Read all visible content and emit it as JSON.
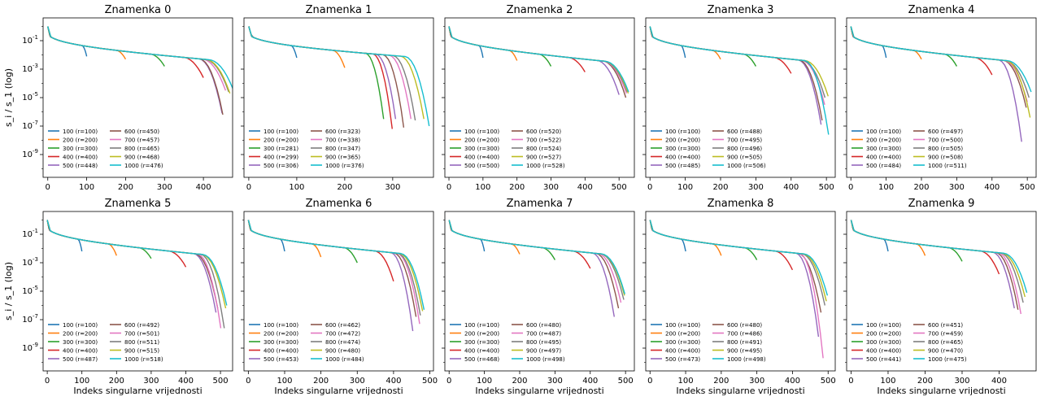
{
  "figure": {
    "x_label": "Indeks singularne vrijednosti",
    "y_label": "s_i / s_1 (log)",
    "y_ticks": [
      "10^-1",
      "10^-3",
      "10^-5",
      "10^-7",
      "10^-9"
    ]
  },
  "colors": [
    "#1f77b4",
    "#ff7f0e",
    "#2ca02c",
    "#d62728",
    "#9467bd",
    "#8c564b",
    "#e377c2",
    "#7f7f7f",
    "#bcbd22",
    "#17becf"
  ],
  "chart_data": [
    {
      "type": "line",
      "title": "Znamenka 0",
      "x_ticks": [
        0,
        100,
        200,
        300,
        400
      ],
      "xlim": [
        -12,
        475
      ],
      "ylim": [
        -10.6,
        0.6
      ],
      "yscale": "log",
      "legend": "lower-left",
      "sizes": [
        100,
        200,
        300,
        400,
        500,
        600,
        700,
        800,
        900,
        1000
      ],
      "series": [
        {
          "name": "100 (r=100)",
          "rank": 100,
          "end": -2.1
        },
        {
          "name": "200 (r=200)",
          "rank": 200,
          "end": -2.3
        },
        {
          "name": "300 (r=300)",
          "rank": 300,
          "end": -2.8
        },
        {
          "name": "400 (r=400)",
          "rank": 400,
          "end": -3.6
        },
        {
          "name": "500 (r=448)",
          "rank": 448,
          "end": -6.1
        },
        {
          "name": "600 (r=450)",
          "rank": 450,
          "end": -6.2
        },
        {
          "name": "700 (r=457)",
          "rank": 457,
          "end": -4.5
        },
        {
          "name": "800 (r=465)",
          "rank": 465,
          "end": -4.6
        },
        {
          "name": "900 (r=468)",
          "rank": 468,
          "end": -4.7
        },
        {
          "name": "1000 (r=476)",
          "rank": 476,
          "end": -4.4
        }
      ]
    },
    {
      "type": "line",
      "title": "Znamenka 1",
      "x_ticks": [
        0,
        100,
        200,
        300
      ],
      "xlim": [
        -10,
        385
      ],
      "ylim": [
        -10.6,
        0.6
      ],
      "yscale": "log",
      "legend": "lower-left",
      "sizes": [
        100,
        200,
        300,
        400,
        500,
        600,
        700,
        800,
        900,
        1000
      ],
      "series": [
        {
          "name": "100 (r=100)",
          "rank": 100,
          "end": -2.2
        },
        {
          "name": "200 (r=200)",
          "rank": 200,
          "end": -2.9
        },
        {
          "name": "300 (r=281)",
          "rank": 281,
          "end": -6.5
        },
        {
          "name": "400 (r=299)",
          "rank": 299,
          "end": -7.2
        },
        {
          "name": "500 (r=306)",
          "rank": 306,
          "end": -6.5
        },
        {
          "name": "600 (r=323)",
          "rank": 323,
          "end": -7.1
        },
        {
          "name": "700 (r=338)",
          "rank": 338,
          "end": -6.5
        },
        {
          "name": "800 (r=347)",
          "rank": 347,
          "end": -6.6
        },
        {
          "name": "900 (r=365)",
          "rank": 365,
          "end": -6.5
        },
        {
          "name": "1000 (r=376)",
          "rank": 376,
          "end": -7.0
        }
      ]
    },
    {
      "type": "line",
      "title": "Znamenka 2",
      "x_ticks": [
        0,
        100,
        200,
        300,
        400,
        500
      ],
      "xlim": [
        -12,
        545
      ],
      "ylim": [
        -10.6,
        0.6
      ],
      "yscale": "log",
      "legend": "lower-left",
      "sizes": [
        100,
        200,
        300,
        400,
        500,
        600,
        700,
        800,
        900,
        1000
      ],
      "series": [
        {
          "name": "100 (r=100)",
          "rank": 100,
          "end": -2.2
        },
        {
          "name": "200 (r=200)",
          "rank": 200,
          "end": -2.4
        },
        {
          "name": "300 (r=300)",
          "rank": 300,
          "end": -2.8
        },
        {
          "name": "400 (r=400)",
          "rank": 400,
          "end": -3.2
        },
        {
          "name": "500 (r=500)",
          "rank": 500,
          "end": -4.8
        },
        {
          "name": "600 (r=520)",
          "rank": 520,
          "end": -5.0
        },
        {
          "name": "700 (r=522)",
          "rank": 522,
          "end": -4.7
        },
        {
          "name": "800 (r=524)",
          "rank": 524,
          "end": -4.6
        },
        {
          "name": "900 (r=527)",
          "rank": 527,
          "end": -4.7
        },
        {
          "name": "1000 (r=528)",
          "rank": 528,
          "end": -4.6
        }
      ]
    },
    {
      "type": "line",
      "title": "Znamenka 3",
      "x_ticks": [
        0,
        100,
        200,
        300,
        400,
        500
      ],
      "xlim": [
        -12,
        525
      ],
      "ylim": [
        -10.6,
        0.6
      ],
      "yscale": "log",
      "legend": "lower-left",
      "sizes": [
        100,
        200,
        300,
        400,
        500,
        600,
        700,
        800,
        900,
        1000
      ],
      "series": [
        {
          "name": "100 (r=100)",
          "rank": 100,
          "end": -2.2
        },
        {
          "name": "200 (r=200)",
          "rank": 200,
          "end": -2.3
        },
        {
          "name": "300 (r=300)",
          "rank": 300,
          "end": -2.8
        },
        {
          "name": "400 (r=400)",
          "rank": 400,
          "end": -3.3
        },
        {
          "name": "500 (r=485)",
          "rank": 485,
          "end": -6.9
        },
        {
          "name": "600 (r=488)",
          "rank": 488,
          "end": -6.6
        },
        {
          "name": "700 (r=495)",
          "rank": 495,
          "end": -5.5
        },
        {
          "name": "800 (r=496)",
          "rank": 496,
          "end": -5.0
        },
        {
          "name": "900 (r=505)",
          "rank": 505,
          "end": -4.9
        },
        {
          "name": "1000 (r=506)",
          "rank": 506,
          "end": -7.6
        }
      ]
    },
    {
      "type": "line",
      "title": "Znamenka 4",
      "x_ticks": [
        0,
        100,
        200,
        300,
        400,
        500
      ],
      "xlim": [
        -12,
        525
      ],
      "ylim": [
        -10.6,
        0.6
      ],
      "yscale": "log",
      "legend": "lower-left",
      "sizes": [
        100,
        200,
        300,
        400,
        500,
        600,
        700,
        800,
        900,
        1000
      ],
      "series": [
        {
          "name": "100 (r=100)",
          "rank": 100,
          "end": -2.2
        },
        {
          "name": "200 (r=200)",
          "rank": 200,
          "end": -2.3
        },
        {
          "name": "300 (r=300)",
          "rank": 300,
          "end": -2.8
        },
        {
          "name": "400 (r=400)",
          "rank": 400,
          "end": -3.4
        },
        {
          "name": "500 (r=484)",
          "rank": 484,
          "end": -8.1
        },
        {
          "name": "600 (r=497)",
          "rank": 497,
          "end": -5.7
        },
        {
          "name": "700 (r=500)",
          "rank": 500,
          "end": -5.3
        },
        {
          "name": "800 (r=505)",
          "rank": 505,
          "end": -5.0
        },
        {
          "name": "900 (r=508)",
          "rank": 508,
          "end": -6.4
        },
        {
          "name": "1000 (r=511)",
          "rank": 511,
          "end": -4.6
        }
      ]
    },
    {
      "type": "line",
      "title": "Znamenka 5",
      "x_ticks": [
        0,
        100,
        200,
        300,
        400,
        500
      ],
      "xlim": [
        -12,
        535
      ],
      "ylim": [
        -10.6,
        0.6
      ],
      "yscale": "log",
      "legend": "lower-left",
      "sizes": [
        100,
        200,
        300,
        400,
        500,
        600,
        700,
        800,
        900,
        1000
      ],
      "series": [
        {
          "name": "100 (r=100)",
          "rank": 100,
          "end": -2.2
        },
        {
          "name": "200 (r=200)",
          "rank": 200,
          "end": -2.5
        },
        {
          "name": "300 (r=300)",
          "rank": 300,
          "end": -2.7
        },
        {
          "name": "400 (r=400)",
          "rank": 400,
          "end": -3.3
        },
        {
          "name": "500 (r=487)",
          "rank": 487,
          "end": -6.5
        },
        {
          "name": "600 (r=492)",
          "rank": 492,
          "end": -6.2
        },
        {
          "name": "700 (r=501)",
          "rank": 501,
          "end": -7.6
        },
        {
          "name": "800 (r=511)",
          "rank": 511,
          "end": -7.6
        },
        {
          "name": "900 (r=515)",
          "rank": 515,
          "end": -6.2
        },
        {
          "name": "1000 (r=518)",
          "rank": 518,
          "end": -6.0
        }
      ]
    },
    {
      "type": "line",
      "title": "Znamenka 6",
      "x_ticks": [
        0,
        100,
        200,
        300,
        400,
        500
      ],
      "xlim": [
        -12,
        510
      ],
      "ylim": [
        -10.6,
        0.6
      ],
      "yscale": "log",
      "legend": "lower-left",
      "sizes": [
        100,
        200,
        300,
        400,
        500,
        600,
        700,
        800,
        900,
        1000
      ],
      "series": [
        {
          "name": "100 (r=100)",
          "rank": 100,
          "end": -2.2
        },
        {
          "name": "200 (r=200)",
          "rank": 200,
          "end": -2.6
        },
        {
          "name": "300 (r=300)",
          "rank": 300,
          "end": -3.0
        },
        {
          "name": "400 (r=400)",
          "rank": 400,
          "end": -4.3
        },
        {
          "name": "500 (r=453)",
          "rank": 453,
          "end": -7.8
        },
        {
          "name": "600 (r=462)",
          "rank": 462,
          "end": -6.8
        },
        {
          "name": "700 (r=472)",
          "rank": 472,
          "end": -7.3
        },
        {
          "name": "800 (r=474)",
          "rank": 474,
          "end": -6.7
        },
        {
          "name": "900 (r=480)",
          "rank": 480,
          "end": -6.4
        },
        {
          "name": "1000 (r=484)",
          "rank": 484,
          "end": -6.3
        }
      ]
    },
    {
      "type": "line",
      "title": "Znamenka 7",
      "x_ticks": [
        0,
        100,
        200,
        300,
        400,
        500
      ],
      "xlim": [
        -12,
        525
      ],
      "ylim": [
        -10.6,
        0.6
      ],
      "yscale": "log",
      "legend": "lower-left",
      "sizes": [
        100,
        200,
        300,
        400,
        500,
        600,
        700,
        800,
        900,
        1000
      ],
      "series": [
        {
          "name": "100 (r=100)",
          "rank": 100,
          "end": -2.2
        },
        {
          "name": "200 (r=200)",
          "rank": 200,
          "end": -2.4
        },
        {
          "name": "300 (r=300)",
          "rank": 300,
          "end": -2.8
        },
        {
          "name": "400 (r=400)",
          "rank": 400,
          "end": -3.4
        },
        {
          "name": "500 (r=468)",
          "rank": 468,
          "end": -6.8
        },
        {
          "name": "600 (r=480)",
          "rank": 480,
          "end": -6.2
        },
        {
          "name": "700 (r=487)",
          "rank": 487,
          "end": -5.8
        },
        {
          "name": "800 (r=495)",
          "rank": 495,
          "end": -5.6
        },
        {
          "name": "900 (r=497)",
          "rank": 497,
          "end": -5.3
        },
        {
          "name": "1000 (r=498)",
          "rank": 498,
          "end": -5.2
        }
      ]
    },
    {
      "type": "line",
      "title": "Znamenka 8",
      "x_ticks": [
        0,
        100,
        200,
        300,
        400,
        500
      ],
      "xlim": [
        -12,
        520
      ],
      "ylim": [
        -10.6,
        0.6
      ],
      "yscale": "log",
      "legend": "lower-left",
      "sizes": [
        100,
        200,
        300,
        400,
        500,
        600,
        700,
        800,
        900,
        1000
      ],
      "series": [
        {
          "name": "100 (r=100)",
          "rank": 100,
          "end": -2.2
        },
        {
          "name": "200 (r=200)",
          "rank": 200,
          "end": -2.5
        },
        {
          "name": "300 (r=300)",
          "rank": 300,
          "end": -2.8
        },
        {
          "name": "400 (r=400)",
          "rank": 400,
          "end": -3.5
        },
        {
          "name": "500 (r=473)",
          "rank": 473,
          "end": -8.2
        },
        {
          "name": "600 (r=480)",
          "rank": 480,
          "end": -6.5
        },
        {
          "name": "700 (r=486)",
          "rank": 486,
          "end": -9.7
        },
        {
          "name": "800 (r=491)",
          "rank": 491,
          "end": -6.0
        },
        {
          "name": "900 (r=495)",
          "rank": 495,
          "end": -5.7
        },
        {
          "name": "1000 (r=498)",
          "rank": 498,
          "end": -5.3
        }
      ]
    },
    {
      "type": "line",
      "title": "Znamenka 9",
      "x_ticks": [
        0,
        100,
        200,
        300,
        400
      ],
      "xlim": [
        -12,
        500
      ],
      "ylim": [
        -10.6,
        0.6
      ],
      "yscale": "log",
      "legend": "lower-left",
      "sizes": [
        100,
        200,
        300,
        400,
        500,
        600,
        700,
        800,
        900,
        1000
      ],
      "series": [
        {
          "name": "100 (r=100)",
          "rank": 100,
          "end": -2.2
        },
        {
          "name": "200 (r=200)",
          "rank": 200,
          "end": -2.5
        },
        {
          "name": "300 (r=300)",
          "rank": 300,
          "end": -2.9
        },
        {
          "name": "400 (r=400)",
          "rank": 400,
          "end": -3.8
        },
        {
          "name": "500 (r=441)",
          "rank": 441,
          "end": -6.2
        },
        {
          "name": "600 (r=451)",
          "rank": 451,
          "end": -6.3
        },
        {
          "name": "700 (r=459)",
          "rank": 459,
          "end": -6.6
        },
        {
          "name": "800 (r=465)",
          "rank": 465,
          "end": -5.8
        },
        {
          "name": "900 (r=470)",
          "rank": 470,
          "end": -5.4
        },
        {
          "name": "1000 (r=475)",
          "rank": 475,
          "end": -5.1
        }
      ]
    }
  ]
}
